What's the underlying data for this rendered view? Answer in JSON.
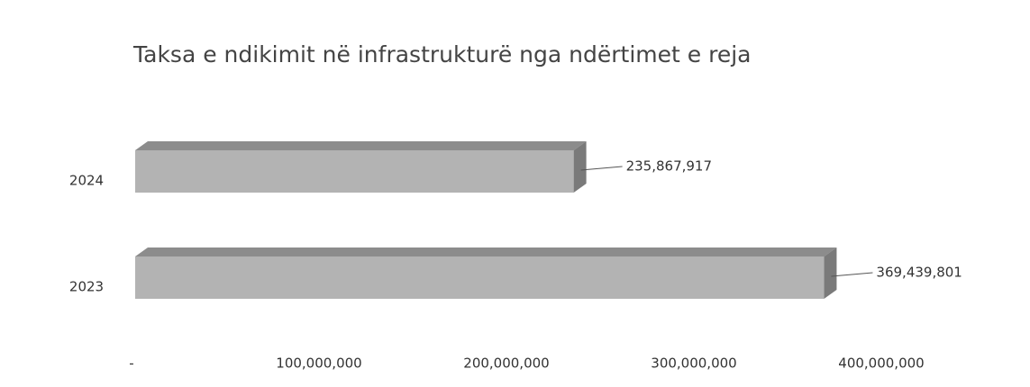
{
  "chart_data": {
    "type": "bar3d_horizontal",
    "title": "Taksa e ndikimit në infrastrukturë nga ndërtimet e reja",
    "categories": [
      "2024",
      "2023"
    ],
    "values": [
      235867917,
      369439801
    ],
    "value_labels": [
      "235,867,917",
      "369,439,801"
    ],
    "color": "#b3b3b3",
    "xlim": [
      0,
      400000000
    ],
    "xticks": [
      {
        "value": 0,
        "label": "-"
      },
      {
        "value": 100000000,
        "label": "100,000,000"
      },
      {
        "value": 200000000,
        "label": "200,000,000"
      },
      {
        "value": 300000000,
        "label": "300,000,000"
      },
      {
        "value": 400000000,
        "label": "400,000,000"
      }
    ]
  }
}
